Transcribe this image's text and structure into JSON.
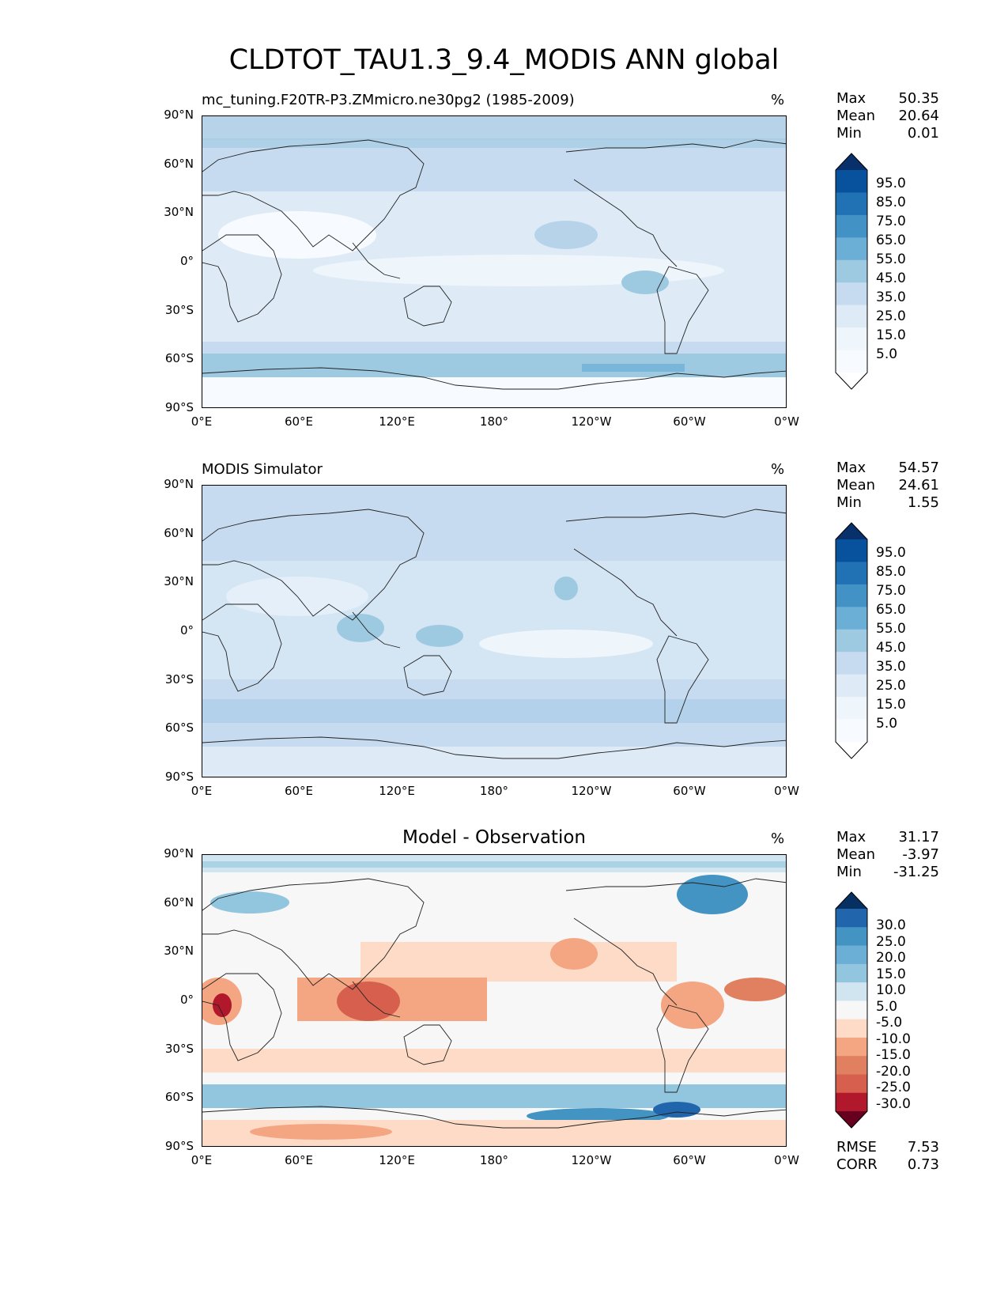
{
  "title": "CLDTOT_TAU1.3_9.4_MODIS ANN global",
  "axes": {
    "lat_labels": [
      "90°N",
      "60°N",
      "30°N",
      "0°",
      "30°S",
      "60°S",
      "90°S"
    ],
    "lon_labels": [
      "0°E",
      "60°E",
      "120°E",
      "180°",
      "120°W",
      "60°W",
      "0°W"
    ]
  },
  "panels": [
    {
      "id": "model",
      "title": "mc_tuning.F20TR-P3.ZMmicro.ne30pg2 (1985-2009)",
      "unit": "%",
      "stats": {
        "max_label": "Max",
        "max": "50.35",
        "mean_label": "Mean",
        "mean": "20.64",
        "min_label": "Min",
        "min": "0.01"
      },
      "colorbar": {
        "ticks": [
          "95.0",
          "85.0",
          "75.0",
          "65.0",
          "55.0",
          "45.0",
          "35.0",
          "25.0",
          "15.0",
          "5.0"
        ],
        "colors": [
          "#08306b",
          "#08519c",
          "#2171b5",
          "#4292c6",
          "#6baed6",
          "#9ecae1",
          "#c6dbef",
          "#deebf7",
          "#eef5fb",
          "#f7fbff",
          "#ffffff"
        ]
      }
    },
    {
      "id": "obs",
      "title": "MODIS Simulator",
      "unit": "%",
      "stats": {
        "max_label": "Max",
        "max": "54.57",
        "mean_label": "Mean",
        "mean": "24.61",
        "min_label": "Min",
        "min": "1.55"
      },
      "colorbar": {
        "ticks": [
          "95.0",
          "85.0",
          "75.0",
          "65.0",
          "55.0",
          "45.0",
          "35.0",
          "25.0",
          "15.0",
          "5.0"
        ],
        "colors": [
          "#08306b",
          "#08519c",
          "#2171b5",
          "#4292c6",
          "#6baed6",
          "#9ecae1",
          "#c6dbef",
          "#deebf7",
          "#eef5fb",
          "#f7fbff",
          "#ffffff"
        ]
      }
    },
    {
      "id": "diff",
      "title": "Model - Observation",
      "unit": "%",
      "stats": {
        "max_label": "Max",
        "max": "31.17",
        "mean_label": "Mean",
        "mean": "-3.97",
        "min_label": "Min",
        "min": "-31.25"
      },
      "colorbar": {
        "ticks": [
          "30.0",
          "25.0",
          "20.0",
          "15.0",
          "10.0",
          "5.0",
          "-5.0",
          "-10.0",
          "-15.0",
          "-20.0",
          "-25.0",
          "-30.0"
        ],
        "colors": [
          "#053061",
          "#2166ac",
          "#4393c3",
          "#6baed6",
          "#92c5de",
          "#d1e5f0",
          "#f7f7f7",
          "#fddbc7",
          "#f4a582",
          "#e08060",
          "#d6604d",
          "#b2182b",
          "#67001f"
        ]
      },
      "metrics": {
        "rmse_label": "RMSE",
        "rmse": "7.53",
        "corr_label": "CORR",
        "corr": "0.73"
      }
    }
  ]
}
